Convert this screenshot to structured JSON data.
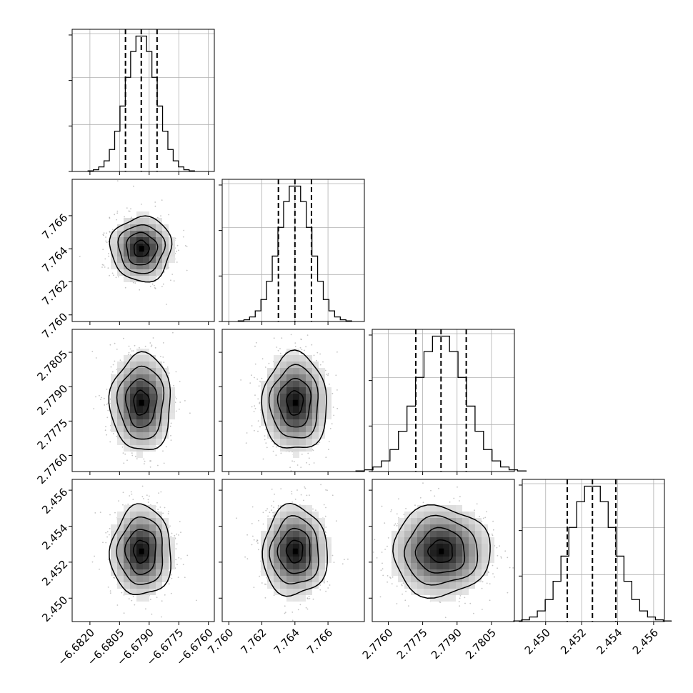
{
  "chart_data": {
    "type": "corner",
    "variables": [
      {
        "range": [
          -6.6829,
          -6.6757
        ],
        "ticks": [
          "−6.6820",
          "−6.6805",
          "−6.6790",
          "−6.6775",
          "−6.6760"
        ],
        "tick_values": [
          -6.682,
          -6.6805,
          -6.679,
          -6.6775,
          -6.676
        ]
      },
      {
        "range": [
          7.7596,
          7.7682
        ],
        "ticks": [
          "7.760",
          "7.762",
          "7.764",
          "7.766"
        ],
        "tick_values": [
          7.76,
          7.762,
          7.764,
          7.766
        ]
      },
      {
        "range": [
          2.7753,
          2.7815
        ],
        "ticks": [
          "2.7760",
          "2.7775",
          "2.7790",
          "2.7805"
        ],
        "tick_values": [
          2.776,
          2.7775,
          2.779,
          2.7805
        ]
      },
      {
        "range": [
          2.4487,
          2.4566
        ],
        "ticks": [
          "2.450",
          "2.452",
          "2.454",
          "2.456"
        ],
        "tick_values": [
          2.45,
          2.452,
          2.454,
          2.456
        ]
      }
    ],
    "quantiles": [
      [
        -6.6802,
        -6.6794,
        -6.6786
      ],
      [
        7.763,
        7.764,
        7.765
      ],
      [
        2.7772,
        2.7783,
        2.7794
      ],
      [
        2.4512,
        2.4526,
        2.4539
      ]
    ],
    "means": [
      -6.6794,
      7.764,
      2.7783,
      2.4526
    ],
    "sigmas": [
      0.00077,
      0.00098,
      0.00106,
      0.00125
    ],
    "hist_bins": 20,
    "grid": true
  }
}
